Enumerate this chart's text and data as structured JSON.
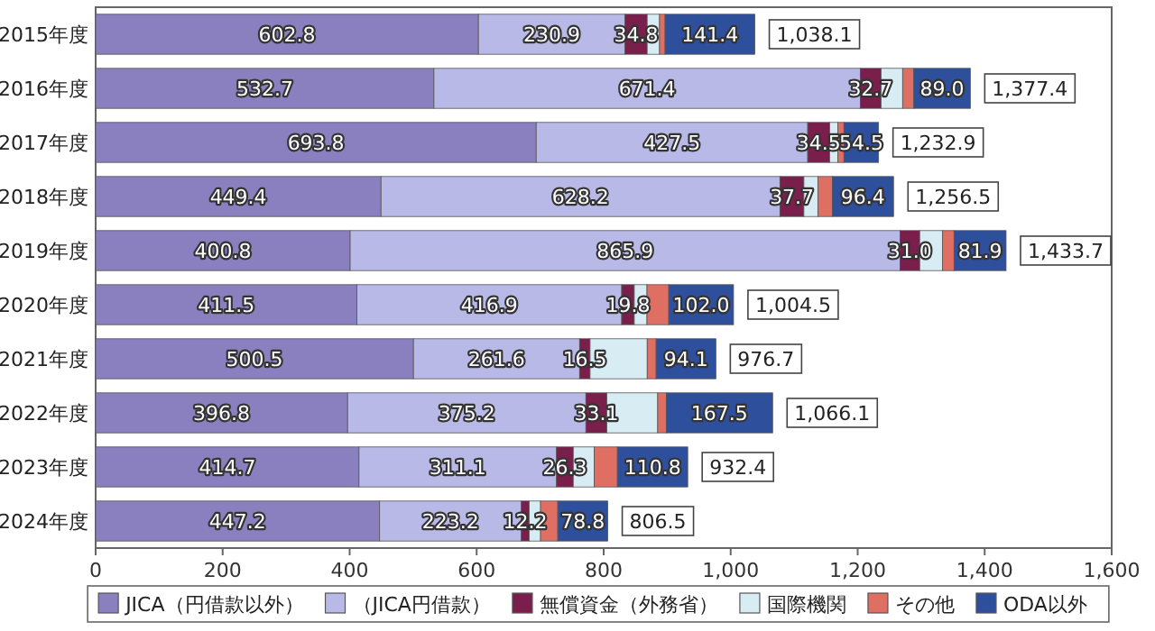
{
  "chart_data": {
    "type": "bar",
    "orientation": "horizontal",
    "stacked": true,
    "legend": "bottom",
    "categories": [
      "2015年度",
      "2016年度",
      "2017年度",
      "2018年度",
      "2019年度",
      "2020年度",
      "2021年度",
      "2022年度",
      "2023年度",
      "2024年度"
    ],
    "xlim": [
      0,
      1600
    ],
    "xticks": [
      0,
      200,
      400,
      600,
      800,
      {
        "value": 1000,
        "label": "1,000"
      },
      {
        "value": 1200,
        "label": "1,200"
      },
      {
        "value": 1400,
        "label": "1,400"
      },
      {
        "value": 1600,
        "label": "1,600"
      }
    ],
    "series": [
      {
        "name": "JICA（円借款以外）",
        "color": "#8a80c0",
        "values": [
          602.8,
          532.7,
          693.8,
          449.4,
          400.8,
          411.5,
          500.5,
          396.8,
          414.7,
          447.2
        ],
        "value_labels": [
          "602.8",
          "532.7",
          "693.8",
          "449.4",
          "400.8",
          "411.5",
          "500.5",
          "396.8",
          "414.7",
          "447.2"
        ]
      },
      {
        "name": "（JICA円借款）",
        "color": "#b9b9e8",
        "values": [
          230.9,
          671.4,
          427.5,
          628.2,
          865.9,
          416.9,
          261.6,
          375.2,
          311.1,
          223.2
        ],
        "value_labels": [
          "230.9",
          "671.4",
          "427.5",
          "628.2",
          "865.9",
          "416.9",
          "261.6",
          "375.2",
          "311.1",
          "223.2"
        ]
      },
      {
        "name": "無償資金（外務省）",
        "color": "#7a1f4c",
        "values": [
          34.8,
          32.7,
          34.5,
          37.7,
          31.0,
          19.8,
          16.5,
          33.1,
          26.3,
          12.2
        ],
        "value_labels": [
          "34.8",
          "32.7",
          "34.5",
          "37.7",
          "31.0",
          "19.8",
          "16.5",
          "33.1",
          "26.3",
          "12.2"
        ]
      },
      {
        "name": "国際機関",
        "color": "#d8ecf3",
        "values": [
          19.5,
          34,
          13,
          22,
          36,
          20,
          90,
          80,
          33,
          18
        ]
      },
      {
        "name": "その他",
        "color": "#df6f63",
        "values": [
          8.7,
          17.6,
          9.6,
          22.8,
          18.1,
          34.3,
          14,
          13.5,
          36.5,
          27.1
        ]
      },
      {
        "name": "ODA以外",
        "color": "#2e4f9c",
        "values": [
          141.4,
          89.0,
          54.5,
          96.4,
          81.9,
          102.0,
          94.1,
          167.5,
          110.8,
          78.8
        ],
        "value_labels": [
          "141.4",
          "89.0",
          "54.5",
          "96.4",
          "81.9",
          "102.0",
          "94.1",
          "167.5",
          "110.8",
          "78.8"
        ]
      }
    ],
    "totals": [
      "1,038.1",
      "1,377.4",
      "1,232.9",
      "1,256.5",
      "1,433.7",
      "1,004.5",
      "976.7",
      "1,066.1",
      "932.4",
      "806.5"
    ]
  }
}
